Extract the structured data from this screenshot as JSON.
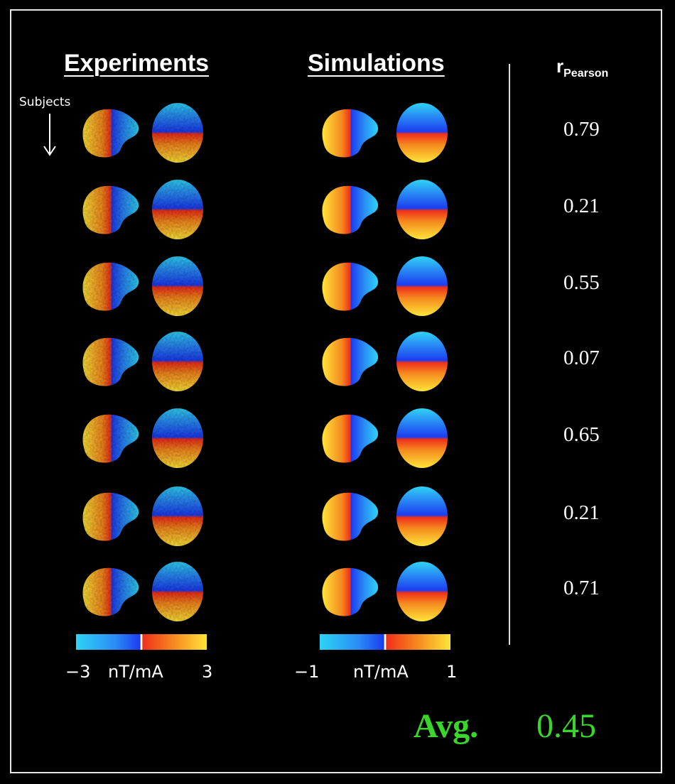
{
  "headers": {
    "experiments": "Experiments",
    "simulations": "Simulations",
    "r_main": "r",
    "r_sub": "Pearson"
  },
  "subjects_label": "Subjects",
  "rows": [
    {
      "r": "0.79"
    },
    {
      "r": "0.21"
    },
    {
      "r": "0.55"
    },
    {
      "r": "0.07"
    },
    {
      "r": "0.65"
    },
    {
      "r": "0.21"
    },
    {
      "r": "0.71"
    }
  ],
  "colorbars": {
    "experiments": {
      "min": "−3",
      "unit": "nT/mA",
      "max": "3"
    },
    "simulations": {
      "min": "−1",
      "unit": "nT/mA",
      "max": "1"
    }
  },
  "average": {
    "label": "Avg.",
    "value": "0.45"
  },
  "colors": {
    "accent_green": "#3bd62b",
    "cyan": "#2ed3f5",
    "blue": "#1c3cf0",
    "red": "#f0301a",
    "orange": "#f58a1f",
    "yellow": "#ffe53a"
  }
}
